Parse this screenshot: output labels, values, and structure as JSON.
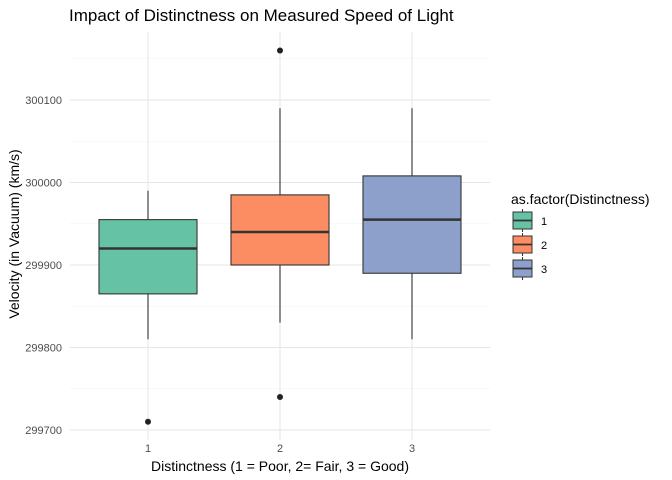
{
  "chart_data": {
    "type": "boxplot",
    "title": "Impact of Distinctness on Measured Speed of Light",
    "xlabel": "Distinctness (1 = Poor, 2= Fair, 3 = Good)",
    "ylabel": "Velocity (in Vacuum) (km/s)",
    "categories": [
      "1",
      "2",
      "3"
    ],
    "ylim": [
      299685,
      300180
    ],
    "yticks": [
      299700,
      299800,
      299900,
      300000,
      300100
    ],
    "ytick_labels": [
      "299700",
      "299800",
      "299900",
      "300000",
      "300100"
    ],
    "grid": true,
    "legend": {
      "title": "as.factor(Distinctness)",
      "position": "right",
      "entries": [
        "1",
        "2",
        "3"
      ]
    },
    "series": [
      {
        "category": "1",
        "color": "#66C2A5",
        "whisker_low": 299810,
        "q1": 299865,
        "median": 299920,
        "q3": 299955,
        "whisker_high": 299990,
        "outliers": [
          299710
        ]
      },
      {
        "category": "2",
        "color": "#FC8D62",
        "whisker_low": 299830,
        "q1": 299900,
        "median": 299940,
        "q3": 299985,
        "whisker_high": 300090,
        "outliers": [
          299740,
          300160
        ]
      },
      {
        "category": "3",
        "color": "#8DA0CB",
        "whisker_low": 299810,
        "q1": 299890,
        "median": 299955,
        "q3": 300008,
        "whisker_high": 300090,
        "outliers": []
      }
    ]
  }
}
